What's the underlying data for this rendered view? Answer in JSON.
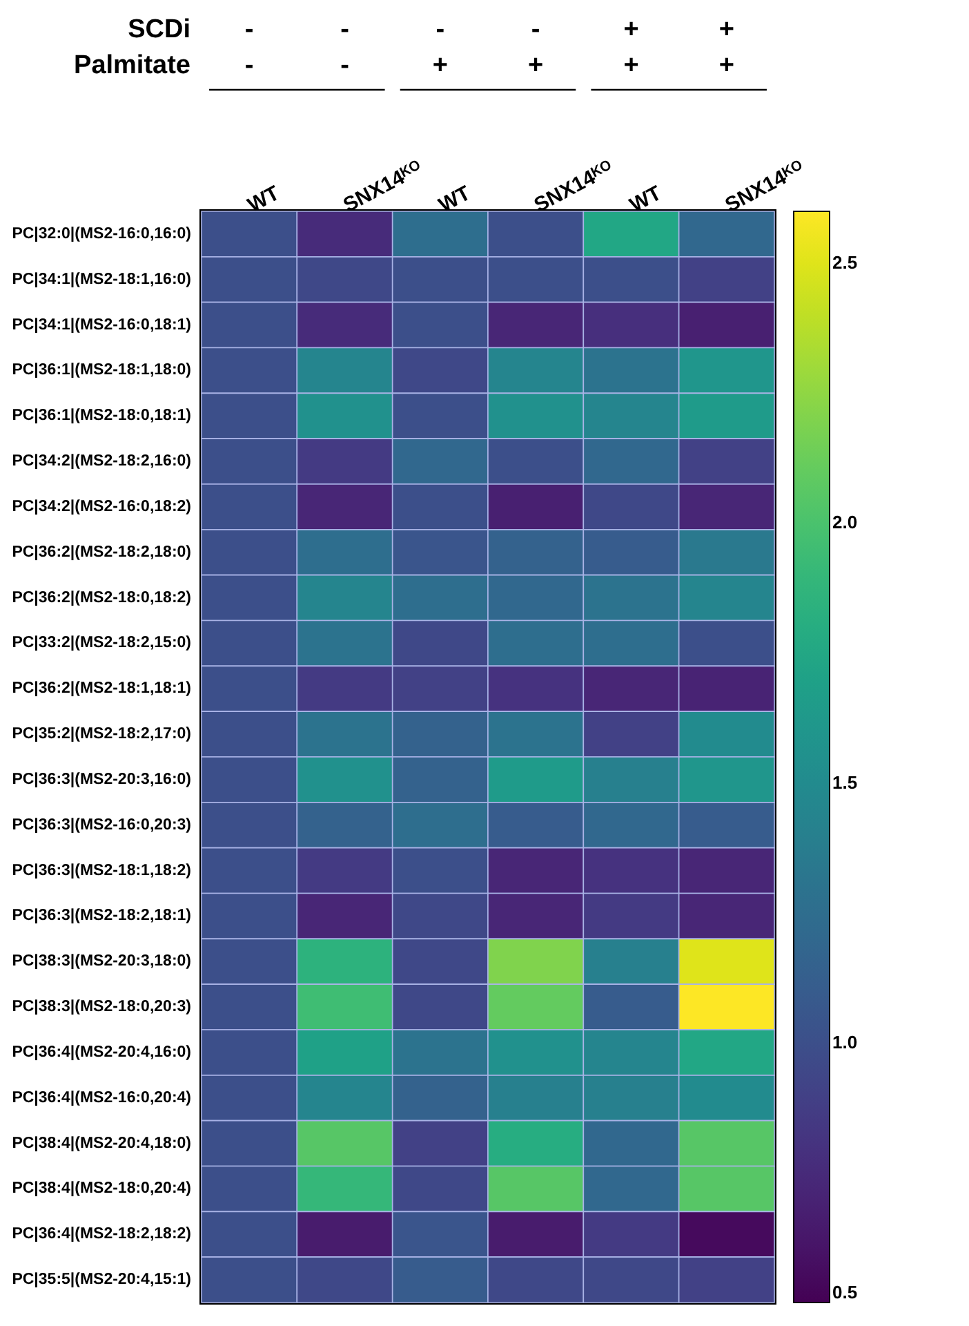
{
  "chart_data": {
    "type": "heatmap",
    "categories": [
      "WT",
      "SNX14ᴷᴼ",
      "WT",
      "SNX14ᴷᴼ",
      "WT",
      "SNX14ᴷᴼ"
    ],
    "y_categories": [
      "PC|32:0|(MS2-16:0,16:0)",
      "PC|34:1|(MS2-18:1,16:0)",
      "PC|34:1|(MS2-16:0,18:1)",
      "PC|36:1|(MS2-18:1,18:0)",
      "PC|36:1|(MS2-18:0,18:1)",
      "PC|34:2|(MS2-18:2,16:0)",
      "PC|34:2|(MS2-16:0,18:2)",
      "PC|36:2|(MS2-18:2,18:0)",
      "PC|36:2|(MS2-18:0,18:2)",
      "PC|33:2|(MS2-18:2,15:0)",
      "PC|36:2|(MS2-18:1,18:1)",
      "PC|35:2|(MS2-18:2,17:0)",
      "PC|36:3|(MS2-20:3,16:0)",
      "PC|36:3|(MS2-16:0,20:3)",
      "PC|36:3|(MS2-18:1,18:2)",
      "PC|36:3|(MS2-18:2,18:1)",
      "PC|38:3|(MS2-20:3,18:0)",
      "PC|38:3|(MS2-18:0,20:3)",
      "PC|36:4|(MS2-20:4,16:0)",
      "PC|36:4|(MS2-16:0,20:4)",
      "PC|38:4|(MS2-20:4,18:0)",
      "PC|38:4|(MS2-18:0,20:4)",
      "PC|36:4|(MS2-18:2,18:2)",
      "PC|35:5|(MS2-20:4,15:1)"
    ],
    "cells": [
      [
        1.0,
        0.75,
        1.25,
        1.0,
        1.75,
        1.2
      ],
      [
        1.0,
        0.95,
        1.0,
        1.0,
        1.0,
        0.9
      ],
      [
        1.0,
        0.75,
        1.0,
        0.72,
        0.78,
        0.68
      ],
      [
        1.0,
        1.45,
        0.95,
        1.45,
        1.3,
        1.6
      ],
      [
        1.0,
        1.55,
        1.0,
        1.55,
        1.45,
        1.65
      ],
      [
        1.0,
        0.85,
        1.2,
        1.0,
        1.2,
        0.9
      ],
      [
        1.0,
        0.72,
        1.0,
        0.68,
        0.95,
        0.72
      ],
      [
        1.0,
        1.25,
        1.05,
        1.15,
        1.1,
        1.35
      ],
      [
        1.0,
        1.45,
        1.25,
        1.2,
        1.3,
        1.45
      ],
      [
        1.0,
        1.3,
        0.95,
        1.25,
        1.25,
        1.0
      ],
      [
        1.0,
        0.85,
        0.9,
        0.8,
        0.72,
        0.7
      ],
      [
        1.0,
        1.3,
        1.15,
        1.3,
        0.9,
        1.5
      ],
      [
        1.0,
        1.55,
        1.15,
        1.65,
        1.4,
        1.6
      ],
      [
        1.0,
        1.15,
        1.25,
        1.1,
        1.2,
        1.1
      ],
      [
        1.0,
        0.85,
        1.0,
        0.72,
        0.8,
        0.72
      ],
      [
        1.0,
        0.72,
        0.95,
        0.72,
        0.85,
        0.72
      ],
      [
        1.0,
        1.85,
        0.95,
        2.2,
        1.4,
        2.5
      ],
      [
        1.0,
        1.95,
        0.95,
        2.1,
        1.1,
        2.6
      ],
      [
        1.0,
        1.7,
        1.3,
        1.55,
        1.45,
        1.75
      ],
      [
        1.0,
        1.45,
        1.15,
        1.4,
        1.4,
        1.5
      ],
      [
        1.0,
        2.05,
        0.9,
        1.8,
        1.2,
        2.05
      ],
      [
        1.0,
        1.9,
        0.95,
        2.05,
        1.2,
        2.05
      ],
      [
        1.0,
        0.65,
        1.05,
        0.65,
        0.85,
        0.55
      ],
      [
        1.0,
        0.95,
        1.1,
        0.95,
        0.95,
        0.9
      ]
    ],
    "clim": [
      0.5,
      2.6
    ],
    "cticks": [
      0.5,
      {
        "value": 1,
        "label": "1.0"
      },
      1.5,
      {
        "value": 2,
        "label": "2.0"
      },
      2.5
    ],
    "annotations": [
      "SCDi",
      "Palmitate",
      "-",
      "-",
      "-",
      "-",
      "+",
      "+",
      "-",
      "-",
      "+",
      "+",
      "+",
      "+"
    ]
  }
}
